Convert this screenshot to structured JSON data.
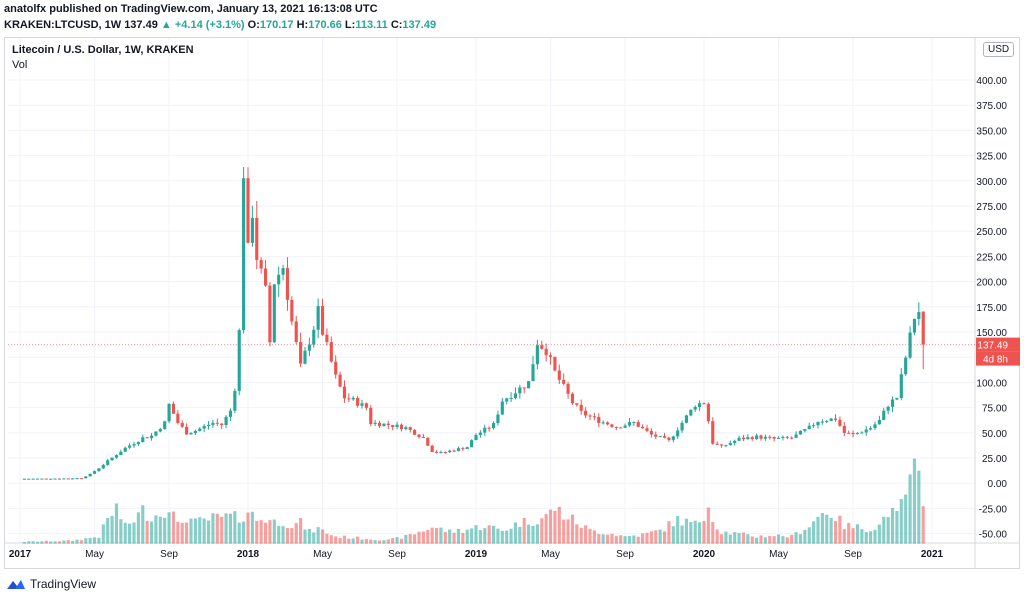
{
  "header": {
    "published": "anatolfx published on TradingView.com, January 13, 2021 16:13:08 UTC",
    "symbol": "KRAKEN:LTCUSD, 1W",
    "last": "137.49",
    "change": "+4.14 (+3.1%)",
    "o_label": "O:",
    "o": "170.17",
    "h_label": "H:",
    "h": "170.66",
    "l_label": "L:",
    "l": "113.11",
    "c_label": "C:",
    "c": "137.49"
  },
  "chart_title": "Litecoin / U.S. Dollar, 1W, KRAKEN",
  "volume_label": "Vol",
  "currency_button": "USD",
  "price_badge": "137.49",
  "countdown_badge": "4d 8h",
  "footer_brand": "TradingView",
  "colors": {
    "up": "#26a69a",
    "down": "#ef5350",
    "grid": "#f0f3fa",
    "axis_text": "#131722"
  },
  "icons": {
    "brand": "tradingview-logo-icon"
  },
  "chart_data": {
    "type": "candlestick",
    "title": "Litecoin / U.S. Dollar, 1W, KRAKEN",
    "yaxis_ticks": [
      "400.00",
      "375.00",
      "350.00",
      "325.00",
      "300.00",
      "275.00",
      "250.00",
      "225.00",
      "200.00",
      "175.00",
      "150.00",
      "125.00",
      "100.00",
      "75.00",
      "50.00",
      "25.00",
      "0.00",
      "-25.00",
      "-50.00"
    ],
    "yaxis_tick_values": [
      400,
      375,
      350,
      325,
      300,
      275,
      250,
      225,
      200,
      175,
      150,
      125,
      100,
      75,
      50,
      25,
      0,
      -25,
      -50
    ],
    "ylim": [
      -60,
      420
    ],
    "xaxis_ticks": [
      "2017",
      "May",
      "Sep",
      "2018",
      "May",
      "Sep",
      "2019",
      "May",
      "Sep",
      "2020",
      "May",
      "Sep",
      "2021"
    ],
    "xaxis_tick_bold": [
      true,
      false,
      false,
      true,
      false,
      false,
      true,
      false,
      false,
      true,
      false,
      false,
      true
    ],
    "xaxis_tick_weeks": [
      0,
      17,
      34,
      52,
      69,
      86,
      104,
      121,
      138,
      156,
      173,
      190,
      208
    ],
    "last_price": 137.49,
    "grid": true,
    "price_path": [
      [
        0,
        4.4
      ],
      [
        8,
        4.6
      ],
      [
        14,
        5
      ],
      [
        16,
        9
      ],
      [
        18,
        15
      ],
      [
        20,
        22
      ],
      [
        24,
        35
      ],
      [
        26,
        40
      ],
      [
        28,
        45
      ],
      [
        30,
        47
      ],
      [
        33,
        60
      ],
      [
        34,
        78
      ],
      [
        36,
        60
      ],
      [
        38,
        50
      ],
      [
        40,
        52
      ],
      [
        44,
        60
      ],
      [
        46,
        58
      ],
      [
        48,
        72
      ],
      [
        49,
        95
      ],
      [
        50,
        150
      ],
      [
        51,
        310
      ],
      [
        52,
        230
      ],
      [
        53,
        270
      ],
      [
        54,
        225
      ],
      [
        56,
        190
      ],
      [
        57,
        140
      ],
      [
        58,
        200
      ],
      [
        60,
        215
      ],
      [
        62,
        160
      ],
      [
        64,
        115
      ],
      [
        67,
        155
      ],
      [
        68,
        170
      ],
      [
        69,
        150
      ],
      [
        72,
        105
      ],
      [
        74,
        85
      ],
      [
        76,
        82
      ],
      [
        79,
        75
      ],
      [
        80,
        60
      ],
      [
        84,
        58
      ],
      [
        88,
        55
      ],
      [
        92,
        45
      ],
      [
        94,
        32
      ],
      [
        96,
        30
      ],
      [
        100,
        34
      ],
      [
        102,
        36
      ],
      [
        104,
        48
      ],
      [
        108,
        58
      ],
      [
        110,
        82
      ],
      [
        112,
        88
      ],
      [
        116,
        100
      ],
      [
        118,
        140
      ],
      [
        120,
        132
      ],
      [
        122,
        110
      ],
      [
        124,
        95
      ],
      [
        126,
        80
      ],
      [
        128,
        70
      ],
      [
        132,
        62
      ],
      [
        136,
        56
      ],
      [
        140,
        60
      ],
      [
        144,
        48
      ],
      [
        148,
        42
      ],
      [
        150,
        54
      ],
      [
        154,
        78
      ],
      [
        156,
        80
      ],
      [
        157,
        62
      ],
      [
        158,
        40
      ],
      [
        160,
        36
      ],
      [
        164,
        44
      ],
      [
        168,
        46
      ],
      [
        172,
        44
      ],
      [
        176,
        45
      ],
      [
        180,
        55
      ],
      [
        182,
        62
      ],
      [
        186,
        64
      ],
      [
        188,
        50
      ],
      [
        190,
        48
      ],
      [
        194,
        55
      ],
      [
        196,
        62
      ],
      [
        198,
        78
      ],
      [
        200,
        85
      ],
      [
        202,
        125
      ],
      [
        204,
        165
      ],
      [
        205,
        170
      ],
      [
        206,
        137.49
      ]
    ],
    "volume_path": [
      [
        0,
        3
      ],
      [
        12,
        5
      ],
      [
        18,
        12
      ],
      [
        20,
        40
      ],
      [
        22,
        60
      ],
      [
        24,
        28
      ],
      [
        26,
        40
      ],
      [
        28,
        55
      ],
      [
        30,
        45
      ],
      [
        32,
        50
      ],
      [
        34,
        65
      ],
      [
        36,
        30
      ],
      [
        38,
        45
      ],
      [
        40,
        35
      ],
      [
        44,
        42
      ],
      [
        48,
        45
      ],
      [
        50,
        42
      ],
      [
        52,
        55
      ],
      [
        54,
        40
      ],
      [
        56,
        42
      ],
      [
        58,
        36
      ],
      [
        60,
        38
      ],
      [
        62,
        30
      ],
      [
        64,
        35
      ],
      [
        66,
        20
      ],
      [
        68,
        25
      ],
      [
        70,
        18
      ],
      [
        72,
        12
      ],
      [
        76,
        10
      ],
      [
        80,
        8
      ],
      [
        84,
        6
      ],
      [
        88,
        12
      ],
      [
        92,
        22
      ],
      [
        94,
        28
      ],
      [
        98,
        20
      ],
      [
        102,
        24
      ],
      [
        106,
        30
      ],
      [
        110,
        22
      ],
      [
        114,
        35
      ],
      [
        118,
        40
      ],
      [
        120,
        45
      ],
      [
        122,
        60
      ],
      [
        124,
        48
      ],
      [
        126,
        40
      ],
      [
        130,
        22
      ],
      [
        134,
        18
      ],
      [
        138,
        12
      ],
      [
        142,
        15
      ],
      [
        146,
        22
      ],
      [
        150,
        40
      ],
      [
        154,
        32
      ],
      [
        156,
        45
      ],
      [
        157,
        80
      ],
      [
        158,
        38
      ],
      [
        160,
        20
      ],
      [
        164,
        16
      ],
      [
        168,
        12
      ],
      [
        172,
        14
      ],
      [
        176,
        12
      ],
      [
        180,
        30
      ],
      [
        182,
        45
      ],
      [
        184,
        55
      ],
      [
        186,
        45
      ],
      [
        188,
        30
      ],
      [
        190,
        28
      ],
      [
        194,
        25
      ],
      [
        196,
        30
      ],
      [
        198,
        55
      ],
      [
        200,
        45
      ],
      [
        202,
        85
      ],
      [
        204,
        120
      ],
      [
        205,
        100
      ],
      [
        206,
        55
      ]
    ]
  }
}
